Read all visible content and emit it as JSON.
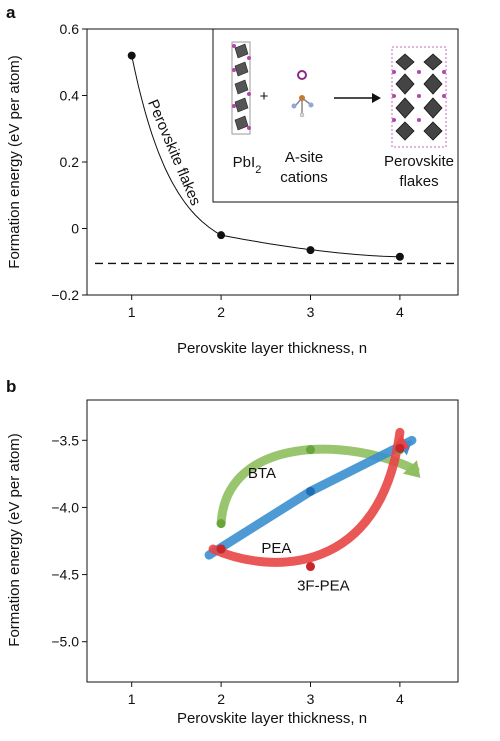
{
  "chart_data": [
    {
      "panel": "a",
      "type": "line",
      "x": [
        1,
        2,
        3,
        4
      ],
      "y": [
        0.52,
        -0.02,
        -0.065,
        -0.085
      ],
      "reference_line": -0.105,
      "curve_label": "Perovskite flakes",
      "xlabel": "Perovskite layer thickness, n",
      "ylabel": "Formation energy (eV per atom)",
      "xlim": [
        0.5,
        4.65
      ],
      "ylim": [
        -0.2,
        0.6
      ],
      "xticks": [
        "1",
        "2",
        "3",
        "4"
      ],
      "yticks": [
        "0.6",
        "0.4",
        "0.2",
        "0",
        "−0.2"
      ],
      "inset": {
        "labels": [
          "PbI2",
          "A-site cations",
          "Perovskite flakes"
        ],
        "operator": "+"
      }
    },
    {
      "panel": "b",
      "type": "line",
      "series": [
        {
          "name": "BTA",
          "color": "#8fbf5f",
          "x": [
            2,
            3,
            4
          ],
          "y": [
            -4.12,
            -3.57,
            -3.57
          ]
        },
        {
          "name": "PEA",
          "color": "#3b8fd0",
          "x": [
            2,
            3,
            4
          ],
          "y": [
            -4.31,
            -3.88,
            -3.56
          ]
        },
        {
          "name": "3F-PEA",
          "color": "#e84545",
          "x": [
            2,
            3,
            4
          ],
          "y": [
            -4.31,
            -4.44,
            -3.56
          ]
        }
      ],
      "xlabel": "Perovskite layer thickness, n",
      "ylabel": "Formation energy (eV per atom)",
      "xlim": [
        0.5,
        4.65
      ],
      "ylim": [
        -5.3,
        -3.2
      ],
      "xticks": [
        "1",
        "2",
        "3",
        "4"
      ],
      "yticks": [
        "−3.5",
        "−4.0",
        "−4.5",
        "−5.0"
      ]
    }
  ],
  "panel_letters": [
    "a",
    "b"
  ]
}
